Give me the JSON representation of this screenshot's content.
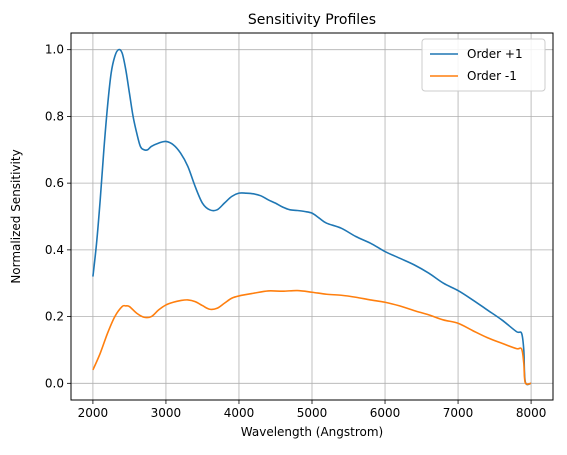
{
  "chart_data": {
    "type": "line",
    "title": "Sensitivity Profiles",
    "xlabel": "Wavelength (Angstrom)",
    "ylabel": "Normalized Sensitivity",
    "xlim": [
      1700,
      8300
    ],
    "ylim": [
      -0.05,
      1.05
    ],
    "xticks": [
      2000,
      3000,
      4000,
      5000,
      6000,
      7000,
      8000
    ],
    "yticks": [
      0.0,
      0.2,
      0.4,
      0.6,
      0.8,
      1.0
    ],
    "xtick_labels": [
      "2000",
      "3000",
      "4000",
      "5000",
      "6000",
      "7000",
      "8000"
    ],
    "ytick_labels": [
      "0.0",
      "0.2",
      "0.4",
      "0.6",
      "0.8",
      "1.0"
    ],
    "grid": true,
    "legend_position": "top-right",
    "series": [
      {
        "name": "Order +1",
        "color": "#1f77b4",
        "x": [
          2000,
          2050,
          2100,
          2150,
          2200,
          2250,
          2300,
          2350,
          2400,
          2450,
          2500,
          2550,
          2600,
          2650,
          2700,
          2750,
          2800,
          2900,
          3000,
          3100,
          3200,
          3300,
          3400,
          3500,
          3600,
          3700,
          3800,
          3900,
          4000,
          4100,
          4200,
          4300,
          4400,
          4500,
          4600,
          4700,
          4800,
          4900,
          5000,
          5100,
          5200,
          5400,
          5600,
          5800,
          6000,
          6200,
          6400,
          6600,
          6800,
          7000,
          7200,
          7400,
          7600,
          7800,
          7870,
          7900,
          7920,
          8000
        ],
        "y": [
          0.32,
          0.42,
          0.55,
          0.7,
          0.83,
          0.93,
          0.98,
          1.0,
          0.99,
          0.94,
          0.87,
          0.8,
          0.75,
          0.71,
          0.7,
          0.7,
          0.71,
          0.72,
          0.725,
          0.715,
          0.69,
          0.65,
          0.59,
          0.54,
          0.52,
          0.52,
          0.54,
          0.56,
          0.57,
          0.57,
          0.568,
          0.562,
          0.55,
          0.54,
          0.528,
          0.52,
          0.518,
          0.515,
          0.51,
          0.495,
          0.48,
          0.465,
          0.44,
          0.42,
          0.395,
          0.375,
          0.355,
          0.33,
          0.3,
          0.278,
          0.25,
          0.22,
          0.19,
          0.155,
          0.15,
          0.1,
          0.005,
          0.0
        ]
      },
      {
        "name": "Order -1",
        "color": "#ff7f0e",
        "x": [
          2000,
          2100,
          2200,
          2300,
          2400,
          2450,
          2500,
          2600,
          2700,
          2800,
          2900,
          3000,
          3100,
          3200,
          3300,
          3400,
          3500,
          3600,
          3700,
          3800,
          3900,
          4000,
          4200,
          4400,
          4600,
          4800,
          5000,
          5200,
          5400,
          5600,
          5800,
          6000,
          6200,
          6400,
          6600,
          6800,
          7000,
          7200,
          7400,
          7600,
          7800,
          7870,
          7900,
          7920,
          8000
        ],
        "y": [
          0.04,
          0.09,
          0.15,
          0.2,
          0.23,
          0.232,
          0.23,
          0.21,
          0.198,
          0.2,
          0.22,
          0.235,
          0.243,
          0.248,
          0.25,
          0.245,
          0.233,
          0.222,
          0.225,
          0.24,
          0.255,
          0.262,
          0.27,
          0.277,
          0.276,
          0.278,
          0.273,
          0.267,
          0.264,
          0.258,
          0.25,
          0.243,
          0.232,
          0.218,
          0.205,
          0.19,
          0.18,
          0.158,
          0.137,
          0.12,
          0.104,
          0.103,
          0.06,
          0.002,
          0.0
        ]
      }
    ]
  }
}
